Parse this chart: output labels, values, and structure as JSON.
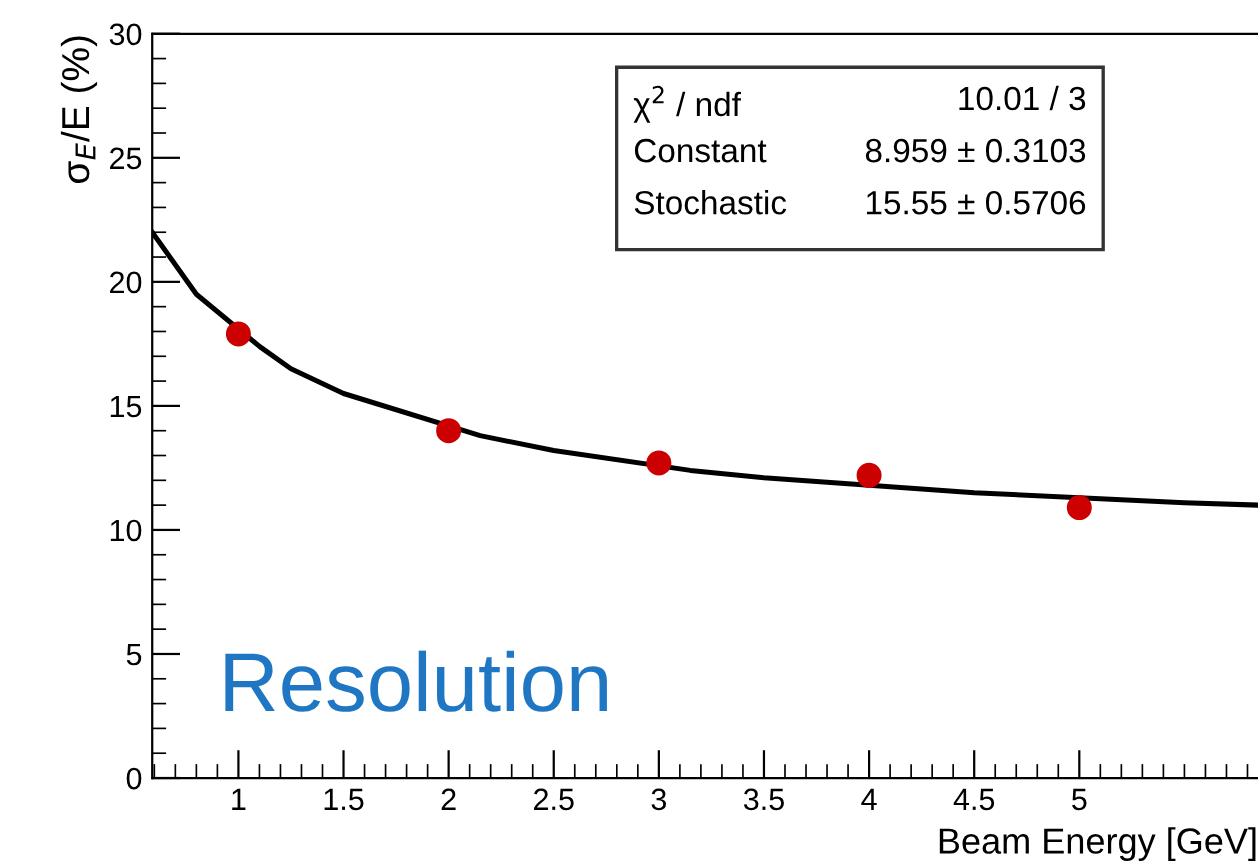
{
  "chart_data": {
    "type": "scatter",
    "xlabel": "Beam Energy [GeV]",
    "ylabel": "σ$_{E}$/E (%)",
    "xlim": [
      0.59,
      5.85
    ],
    "ylim": [
      0,
      30
    ],
    "xticks": [
      1,
      1.5,
      2,
      2.5,
      3,
      3.5,
      4,
      4.5,
      5
    ],
    "yticks": [
      0,
      5,
      10,
      15,
      20,
      25,
      30
    ],
    "grid": false,
    "legend": false,
    "marker": "circle",
    "x": [
      1,
      2,
      3,
      4,
      5
    ],
    "series": [
      {
        "color": "#cc0000",
        "values": [
          17.9,
          14.0,
          12.7,
          12.2,
          10.9
        ]
      },
      {
        "type": "line",
        "color": "#000000",
        "line_style": "solid",
        "marker": "none",
        "x": [
          0.59,
          0.8,
          1.1,
          1.25,
          1.5,
          2.15,
          2.5,
          3.15,
          3.5,
          4,
          4.5,
          5,
          5.5,
          5.85
        ],
        "values": [
          22.0,
          19.5,
          17.4,
          16.5,
          15.5,
          13.8,
          13.2,
          12.4,
          12.1,
          11.8,
          11.5,
          11.3,
          11.1,
          11.0
        ]
      }
    ],
    "annotations": [
      "χ$^{2}$ / ndf\t10.01 / 3",
      "Constant\t8.959 ± 0.3103",
      "Stochastic\t15.55 ± 0.5706",
      "Resolution"
    ]
  }
}
